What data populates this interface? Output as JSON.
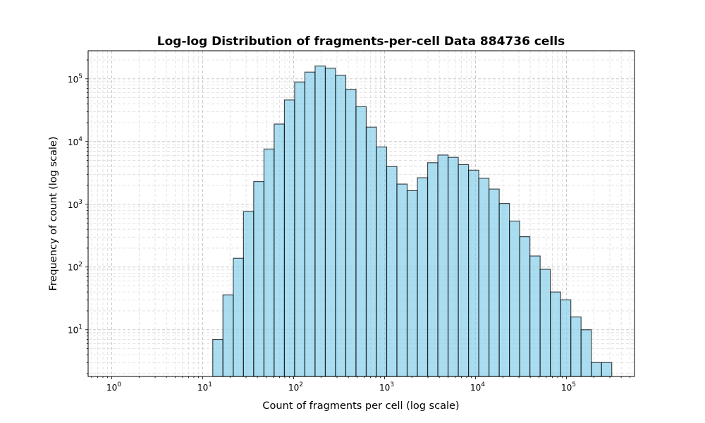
{
  "chart_data": {
    "type": "bar",
    "title": "Log-log Distribution of fragments-per-cell Data 884736 cells",
    "xlabel": "Count of fragments per cell (log scale)",
    "ylabel": "Frequency of count (log scale)",
    "xscale": "log",
    "yscale": "log",
    "xlim": [
      0.55,
      560000
    ],
    "ylim": [
      1.8,
      280000
    ],
    "grid": true,
    "grid_minor": true,
    "legend": "none",
    "x_tick_labels": [
      {
        "base": "10",
        "exp": "0"
      },
      {
        "base": "10",
        "exp": "1"
      },
      {
        "base": "10",
        "exp": "2"
      },
      {
        "base": "10",
        "exp": "3"
      },
      {
        "base": "10",
        "exp": "4"
      },
      {
        "base": "10",
        "exp": "5"
      }
    ],
    "y_tick_labels": [
      {
        "base": "10",
        "exp": "1"
      },
      {
        "base": "10",
        "exp": "2"
      },
      {
        "base": "10",
        "exp": "3"
      },
      {
        "base": "10",
        "exp": "4"
      },
      {
        "base": "10",
        "exp": "5"
      }
    ],
    "bar_color": "#87CEEB",
    "edge_color": "#000000",
    "bin_edges": [
      12.9,
      16.7,
      21.7,
      28.1,
      36.4,
      47.2,
      61.1,
      79.2,
      102.6,
      132.9,
      172.2,
      223.1,
      289.1,
      374.5,
      485.2,
      628.7,
      814.6,
      1055.4,
      1367.4,
      1771.7,
      2295.4,
      2974.1,
      3853.4,
      4992.6,
      6468.6,
      8381.0,
      10858.7,
      14068.9,
      18228.1,
      23617.0,
      30598.9,
      39644.9,
      51365.1,
      66550.2,
      86224.4,
      111714.8,
      144741.2,
      187530.7,
      242970.1,
      314798.0
    ],
    "values": [
      7,
      36,
      138,
      770,
      2300,
      7600,
      19000,
      46000,
      89000,
      128000,
      160000,
      148000,
      114000,
      68000,
      36000,
      17000,
      8200,
      4000,
      2100,
      1650,
      2650,
      4600,
      6100,
      5600,
      4300,
      3500,
      2600,
      1750,
      1030,
      540,
      305,
      150,
      92,
      40,
      30,
      16,
      10,
      3,
      3
    ]
  }
}
